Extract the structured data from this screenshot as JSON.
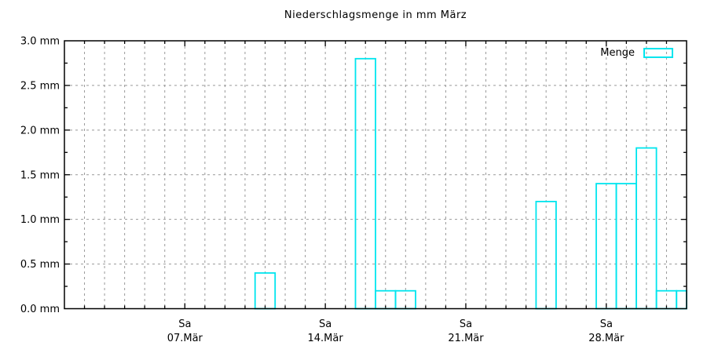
{
  "chart": {
    "title": "Niederschlagsmenge in mm März",
    "legend_label": "Menge"
  },
  "chart_data": {
    "type": "bar",
    "title": "Niederschlagsmenge in mm März",
    "unit": "mm",
    "series": [
      {
        "name": "Menge",
        "points": [
          {
            "day": 11,
            "value": 0.4
          },
          {
            "day": 16,
            "value": 2.8
          },
          {
            "day": 17,
            "value": 0.2
          },
          {
            "day": 18,
            "value": 0.2
          },
          {
            "day": 25,
            "value": 1.2
          },
          {
            "day": 28,
            "value": 1.4
          },
          {
            "day": 29,
            "value": 1.4
          },
          {
            "day": 30,
            "value": 1.8
          },
          {
            "day": 31,
            "value": 0.2
          },
          {
            "day": 32,
            "value": 0.2
          }
        ]
      }
    ],
    "x_axis": {
      "range_days": [
        1,
        32
      ],
      "minor_tick_interval_days": 1,
      "major_ticks": [
        {
          "day": 7,
          "line1": "Sa",
          "line2": "07.Mär"
        },
        {
          "day": 14,
          "line1": "Sa",
          "line2": "14.Mär"
        },
        {
          "day": 21,
          "line1": "Sa",
          "line2": "21.Mär"
        },
        {
          "day": 28,
          "line1": "Sa",
          "line2": "28.Mär"
        }
      ]
    },
    "y_axis": {
      "ylim": [
        0,
        3
      ],
      "major_tick_interval": 0.5,
      "minor_tick_interval": 0.25,
      "tick_labels": [
        "0.0 mm",
        "0.5 mm",
        "1.0 mm",
        "1.5 mm",
        "2.0 mm",
        "2.5 mm",
        "3.0 mm"
      ]
    },
    "grid": {
      "horizontal": "major-only",
      "vertical": "every-day",
      "style": "dashed"
    },
    "legend": {
      "label": "Menge",
      "position": "top-right-inside"
    },
    "colors": {
      "bar": "#00e5ee",
      "grid": "#999999",
      "axis": "#000000",
      "text": "#000000",
      "background": "#ffffff"
    }
  }
}
